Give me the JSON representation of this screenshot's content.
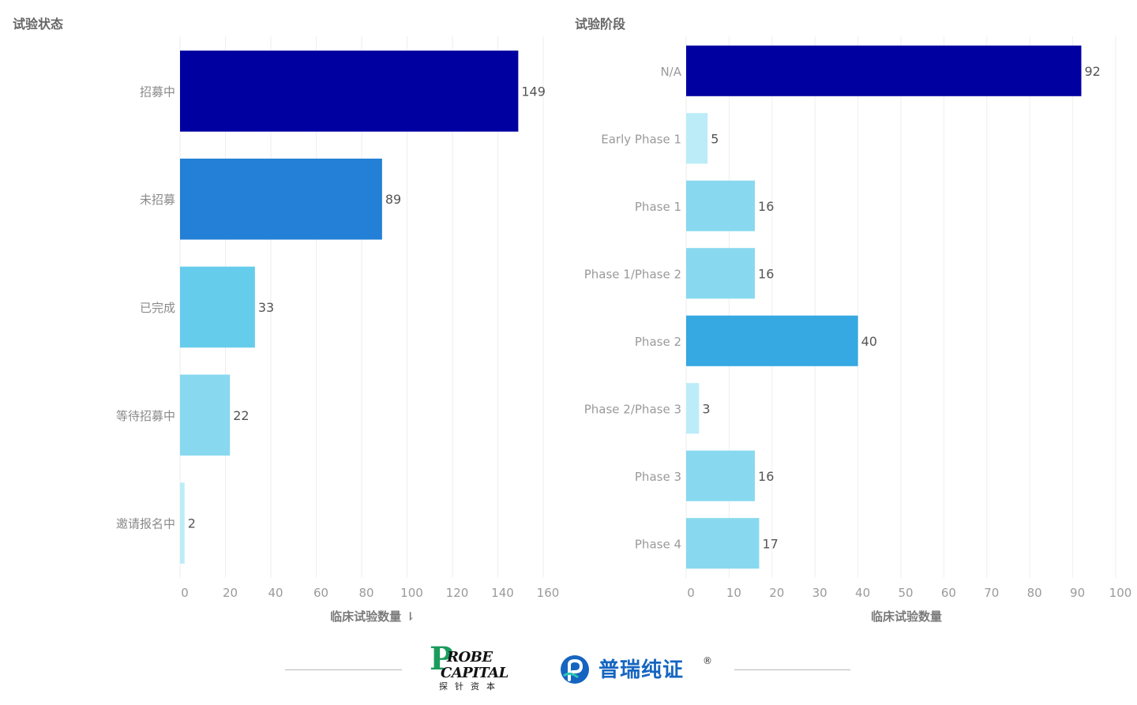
{
  "chart_data": [
    {
      "type": "bar",
      "orientation": "horizontal",
      "title": "试验状态",
      "xlabel": "临床试验数量 ⇂",
      "ylabel": "",
      "xlim": [
        0,
        160
      ],
      "xticks": [
        0,
        20,
        40,
        60,
        80,
        100,
        120,
        140,
        160
      ],
      "categories": [
        "招募中",
        "未招募",
        "已完成",
        "等待招募中",
        "邀请报名中"
      ],
      "values": [
        149,
        89,
        33,
        22,
        2
      ],
      "colors": [
        "#0000a0",
        "#2380d6",
        "#66ccec",
        "#88d9f0",
        "#bcecf8"
      ],
      "grid": true
    },
    {
      "type": "bar",
      "orientation": "horizontal",
      "title": "试验阶段",
      "xlabel": "临床试验数量",
      "ylabel": "",
      "xlim": [
        0,
        100
      ],
      "xticks": [
        0,
        10,
        20,
        30,
        40,
        50,
        60,
        70,
        80,
        90,
        100
      ],
      "categories": [
        "N/A",
        "Early Phase 1",
        "Phase 1",
        "Phase 1/Phase 2",
        "Phase 2",
        "Phase 2/Phase 3",
        "Phase 3",
        "Phase 4"
      ],
      "values": [
        92,
        5,
        16,
        16,
        40,
        3,
        16,
        17
      ],
      "colors": [
        "#0000a0",
        "#bcecf8",
        "#88d9f0",
        "#88d9f0",
        "#36a8e2",
        "#bcecf8",
        "#88d9f0",
        "#88d9f0"
      ],
      "grid": true
    }
  ],
  "footer": {
    "logo_probe_letter": "P",
    "logo_probe_line1": "ROBE",
    "logo_probe_line2": "CAPITAL",
    "logo_probe_cn": "探针资本",
    "logo_purui_text": "普瑞纯证",
    "logo_purui_reg": "®",
    "brand_colors": {
      "probe_green": "#1b9c5d",
      "purui_blue": "#1565c0"
    }
  }
}
